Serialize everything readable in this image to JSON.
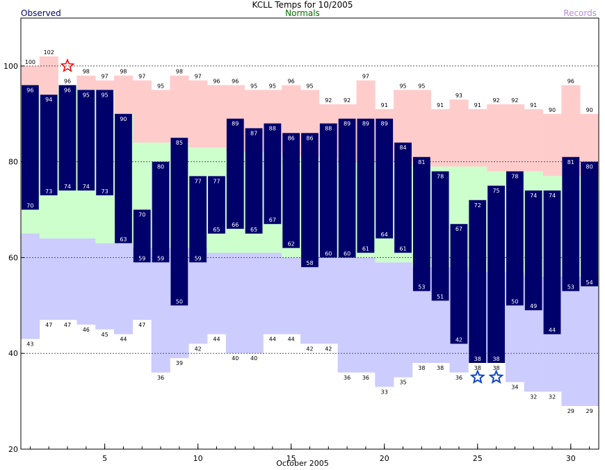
{
  "chart_data": {
    "type": "bar",
    "title": "KCLL Temps for 10/2005",
    "xlabel": "October 2005",
    "ylabel": "",
    "legend": {
      "observed": "Observed",
      "normals": "Normals",
      "records": "Records"
    },
    "x": [
      1,
      2,
      3,
      4,
      5,
      6,
      7,
      8,
      9,
      10,
      11,
      12,
      13,
      14,
      15,
      16,
      17,
      18,
      19,
      20,
      21,
      22,
      23,
      24,
      25,
      26,
      27,
      28,
      29,
      30,
      31
    ],
    "xticks": [
      5,
      10,
      15,
      20,
      25,
      30
    ],
    "yticks": [
      20,
      40,
      60,
      80,
      100
    ],
    "ylim": [
      20,
      110
    ],
    "xlim": [
      0.5,
      31.5
    ],
    "grid_dotted_at": [
      40,
      60,
      80,
      100
    ],
    "series": [
      {
        "name": "Observed",
        "high": [
          96,
          94,
          96,
          95,
          95,
          90,
          70,
          80,
          85,
          77,
          77,
          89,
          87,
          88,
          86,
          86,
          88,
          89,
          89,
          89,
          84,
          81,
          78,
          67,
          72,
          75,
          78,
          74,
          74,
          81,
          80
        ],
        "low": [
          70,
          73,
          74,
          74,
          73,
          63,
          59,
          59,
          50,
          59,
          65,
          66,
          65,
          67,
          62,
          58,
          60,
          60,
          61,
          64,
          61,
          53,
          51,
          42,
          38,
          38,
          50,
          49,
          44,
          53,
          54
        ]
      },
      {
        "name": "Normals",
        "high": [
          96,
          94,
          96,
          95,
          95,
          90,
          84,
          84,
          84,
          83,
          83,
          82,
          82,
          82,
          81,
          81,
          81,
          80,
          80,
          80,
          80,
          79,
          79,
          79,
          79,
          78,
          78,
          78,
          77,
          77,
          77
        ],
        "low": [
          65,
          64,
          64,
          64,
          63,
          63,
          62,
          62,
          62,
          62,
          61,
          61,
          61,
          61,
          60,
          60,
          60,
          60,
          60,
          59,
          59,
          58,
          58,
          58,
          57,
          57,
          57,
          56,
          56,
          56,
          56
        ]
      },
      {
        "name": "Records",
        "high": [
          100,
          102,
          96,
          98,
          97,
          98,
          97,
          95,
          98,
          97,
          96,
          96,
          95,
          95,
          96,
          95,
          92,
          92,
          97,
          91,
          95,
          95,
          91,
          93,
          91,
          92,
          92,
          91,
          90,
          96,
          90
        ],
        "low": [
          43,
          47,
          47,
          46,
          45,
          44,
          47,
          36,
          39,
          42,
          44,
          40,
          40,
          44,
          44,
          42,
          42,
          36,
          36,
          33,
          35,
          38,
          38,
          36,
          38,
          38,
          34,
          32,
          32,
          29,
          29
        ]
      }
    ],
    "record_markers": [
      {
        "day": 3,
        "value": 100,
        "kind": "record-high",
        "color": "#ee0000"
      },
      {
        "day": 25,
        "value": 35,
        "kind": "record-low",
        "color": "#1144cc"
      },
      {
        "day": 26,
        "value": 35,
        "kind": "record-low",
        "color": "#1144cc"
      }
    ],
    "colors": {
      "observed": "#00006b",
      "normal": "#ccffcc",
      "record_high": "#ffcccc",
      "record_low": "#ccccff",
      "observed_legend": "#00006b",
      "normals_legend": "#007000",
      "records_legend": "#bb88dd"
    }
  }
}
